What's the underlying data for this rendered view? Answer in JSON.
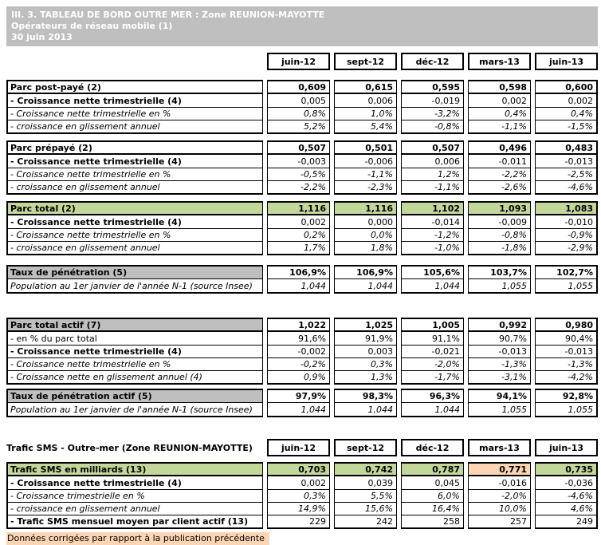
{
  "title": {
    "line1": "III. 3. TABLEAU DE BORD OUTRE MER : Zone REUNION-MAYOTTE",
    "line2": "Opérateurs de réseau mobile (1)",
    "line3": "30 juin 2013"
  },
  "columns": [
    "juin-12",
    "sept-12",
    "déc-12",
    "mars-13",
    "juin-13"
  ],
  "colors": {
    "title_bg": "#bfbfbf",
    "gray": "#bfbfbf",
    "green": "#c4d79b",
    "orange": "#fcd5b4",
    "border": "#000000"
  },
  "main_blocks": [
    {
      "id": "parc-post-paye",
      "rows": [
        {
          "label": "Parc post-payé (2)",
          "style": "bold",
          "values": [
            "0,609",
            "0,615",
            "0,595",
            "0,598",
            "0,600"
          ]
        },
        {
          "label": "- Croissance nette trimestrielle (4)",
          "style": "label-bold",
          "values": [
            "0,005",
            "0,006",
            "-0,019",
            "0,002",
            "0,002"
          ]
        },
        {
          "label": "- Croissance nette trimestrielle en %",
          "style": "italic",
          "values": [
            "0,8%",
            "1,0%",
            "-3,2%",
            "0,4%",
            "0,4%"
          ]
        },
        {
          "label": "- croissance en glissement annuel",
          "style": "italic",
          "values": [
            "5,2%",
            "5,4%",
            "-0,8%",
            "-1,1%",
            "-1,5%"
          ]
        }
      ]
    },
    {
      "id": "parc-prepaye",
      "rows": [
        {
          "label": "Parc prépayé (2)",
          "style": "bold",
          "values": [
            "0,507",
            "0,501",
            "0,507",
            "0,496",
            "0,483"
          ]
        },
        {
          "label": "- Croissance nette trimestrielle (4)",
          "style": "label-bold",
          "values": [
            "-0,003",
            "-0,006",
            "0,006",
            "-0,011",
            "-0,013"
          ]
        },
        {
          "label": "- Croissance nette trimestrielle en %",
          "style": "italic",
          "values": [
            "-0,5%",
            "-1,1%",
            "1,2%",
            "-2,2%",
            "-2,5%"
          ]
        },
        {
          "label": "- croissance en glissement annuel",
          "style": "italic",
          "values": [
            "-2,2%",
            "-2,3%",
            "-1,1%",
            "-2,6%",
            "-4,6%"
          ]
        }
      ]
    },
    {
      "id": "parc-total",
      "rows": [
        {
          "label": "Parc total (2)",
          "style": "bold",
          "row_bg": "green",
          "values": [
            "1,116",
            "1,116",
            "1,102",
            "1,093",
            "1,083"
          ]
        },
        {
          "label": "- Croissance nette trimestrielle (4)",
          "style": "label-bold",
          "values": [
            "0,002",
            "0,000",
            "-0,014",
            "-0,009",
            "-0,010"
          ]
        },
        {
          "label": "- Croissance nette trimestrielle en %",
          "style": "italic",
          "values": [
            "0,2%",
            "0,0%",
            "-1,2%",
            "-0,8%",
            "-0,9%"
          ]
        },
        {
          "label": "- croissance en glissement annuel",
          "style": "italic",
          "values": [
            "1,7%",
            "1,8%",
            "-1,0%",
            "-1,8%",
            "-2,9%"
          ]
        }
      ]
    },
    {
      "id": "taux-penetration",
      "thin_sep": true,
      "rows": [
        {
          "label": "Taux de pénétration (5)",
          "style": "bold",
          "label_bg": "gray",
          "values": [
            "106,9%",
            "106,9%",
            "105,6%",
            "103,7%",
            "102,7%"
          ]
        },
        {
          "label": "Population au 1er janvier de l'année N-1 (source Insee)",
          "style": "italic",
          "values": [
            "1,044",
            "1,044",
            "1,044",
            "1,055",
            "1,055"
          ]
        }
      ]
    },
    {
      "id": "parc-total-actif",
      "rows": [
        {
          "label": "Parc total actif (7)",
          "style": "bold",
          "label_bg": "gray",
          "values": [
            "1,022",
            "1,025",
            "1,005",
            "0,992",
            "0,980"
          ]
        },
        {
          "label": "- en % du parc total",
          "style": "regular",
          "values": [
            "91,6%",
            "91,9%",
            "91,1%",
            "90,7%",
            "90,4%"
          ]
        },
        {
          "label": "- Croissance nette trimestrielle (4)",
          "style": "label-bold",
          "values": [
            "-0,002",
            "0,003",
            "-0,021",
            "-0,013",
            "-0,013"
          ]
        },
        {
          "label": "- Croissance nette trimestrielle en %",
          "style": "italic",
          "values": [
            "-0,2%",
            "0,3%",
            "-2,0%",
            "-1,3%",
            "-1,3%"
          ]
        },
        {
          "label": "- Croissance nette en glissement annuel (4)",
          "style": "italic",
          "values": [
            "0,9%",
            "1,3%",
            "-1,7%",
            "-3,1%",
            "-4,2%"
          ]
        }
      ]
    },
    {
      "id": "taux-penetration-actif",
      "thin_sep": true,
      "rows": [
        {
          "label": "Taux de pénétration actif (5)",
          "style": "bold",
          "label_bg": "gray",
          "values": [
            "97,9%",
            "98,3%",
            "96,3%",
            "94,1%",
            "92,8%"
          ]
        },
        {
          "label": "Population au 1er janvier de l'année N-1 (source Insee)",
          "style": "italic",
          "values": [
            "1,044",
            "1,044",
            "1,044",
            "1,055",
            "1,055"
          ]
        }
      ]
    }
  ],
  "sms_section": {
    "header": "Trafic SMS - Outre-mer (Zone REUNION-MAYOTTE)",
    "block": {
      "id": "trafic-sms",
      "rows": [
        {
          "label": "Trafic SMS en milliards (13)",
          "style": "bold",
          "row_bg": "green",
          "value_bg": {
            "3": "orange"
          },
          "values": [
            "0,703",
            "0,742",
            "0,787",
            "0,771",
            "0,735"
          ]
        },
        {
          "label": "- Croissance nette trimestrielle (4)",
          "style": "label-bold",
          "values": [
            "0,002",
            "0,039",
            "0,045",
            "-0,016",
            "-0,036"
          ]
        },
        {
          "label": "- Croissance trimestrielle en %",
          "style": "italic",
          "values": [
            "0,3%",
            "5,5%",
            "6,0%",
            "-2,0%",
            "-4,6%"
          ]
        },
        {
          "label": "- croissance en glissement annuel",
          "style": "italic",
          "values": [
            "14,9%",
            "15,6%",
            "16,4%",
            "10,0%",
            "4,6%"
          ]
        },
        {
          "label": "- Trafic SMS mensuel moyen par client actif (13)",
          "style": "label-bold",
          "values": [
            "229",
            "242",
            "258",
            "257",
            "249"
          ]
        }
      ]
    }
  },
  "footer_note": "Données corrigées par rapport à la publication précédente"
}
